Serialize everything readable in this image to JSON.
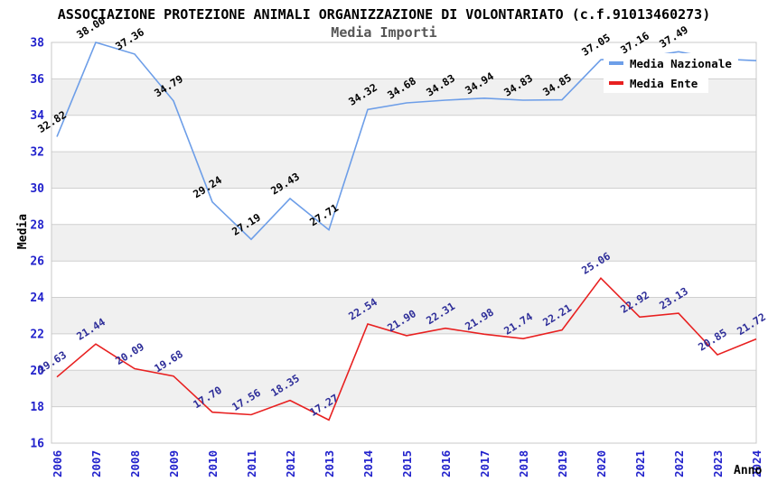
{
  "chart_data": {
    "type": "line",
    "title": "ASSOCIAZIONE PROTEZIONE ANIMALI ORGANIZZAZIONE DI VOLONTARIATO (c.f.91013460273)",
    "subtitle": "Media Importi",
    "xlabel": "Anno",
    "ylabel": "Media",
    "ylim": [
      16,
      38
    ],
    "grid": "horizontal-stripes",
    "legend_position": "top-right",
    "x": [
      2006,
      2007,
      2008,
      2009,
      2010,
      2011,
      2012,
      2013,
      2014,
      2015,
      2016,
      2017,
      2018,
      2019,
      2020,
      2021,
      2022,
      2023,
      2024
    ],
    "series": [
      {
        "name": "Media Nazionale",
        "color": "#6D9EE8",
        "label_color": "#000000",
        "values": [
          32.82,
          38.0,
          37.36,
          34.79,
          29.24,
          27.19,
          29.43,
          27.71,
          34.32,
          34.68,
          34.83,
          34.94,
          34.83,
          34.85,
          37.05,
          37.16,
          37.49,
          37.1,
          37.0
        ],
        "point_labels": [
          "32.82",
          "38.00",
          "37.36",
          "34.79",
          "29.24",
          "27.19",
          "29.43",
          "27.71",
          "34.32",
          "34.68",
          "34.83",
          "34.94",
          "34.83",
          "34.85",
          "37.05",
          "37.16",
          "37.49",
          null,
          null
        ]
      },
      {
        "name": "Media Ente",
        "color": "#E82020",
        "label_color": "#2E2E99",
        "values": [
          19.63,
          21.44,
          20.09,
          19.68,
          17.7,
          17.56,
          18.35,
          17.27,
          22.54,
          21.9,
          22.31,
          21.98,
          21.74,
          22.21,
          25.06,
          22.92,
          23.13,
          20.85,
          21.72
        ],
        "point_labels": [
          "19.63",
          "21.44",
          "20.09",
          "19.68",
          "17.70",
          "17.56",
          "18.35",
          "17.27",
          "22.54",
          "21.90",
          "22.31",
          "21.98",
          "21.74",
          "22.21",
          "25.06",
          "22.92",
          "23.13",
          "20.85",
          "21.72"
        ]
      }
    ]
  },
  "axes": {
    "y_ticks": [
      16,
      18,
      20,
      22,
      24,
      26,
      28,
      30,
      32,
      34,
      36,
      38
    ],
    "tick_color": "#2222CC",
    "gridline_color": "#CFCFCF",
    "stripe_color": "#F0F0F0",
    "border_color": "#C8C8C8"
  },
  "legend": {
    "items": [
      {
        "label": "Media Nazionale",
        "color": "#6D9EE8"
      },
      {
        "label": "Media Ente",
        "color": "#E82020"
      }
    ]
  }
}
